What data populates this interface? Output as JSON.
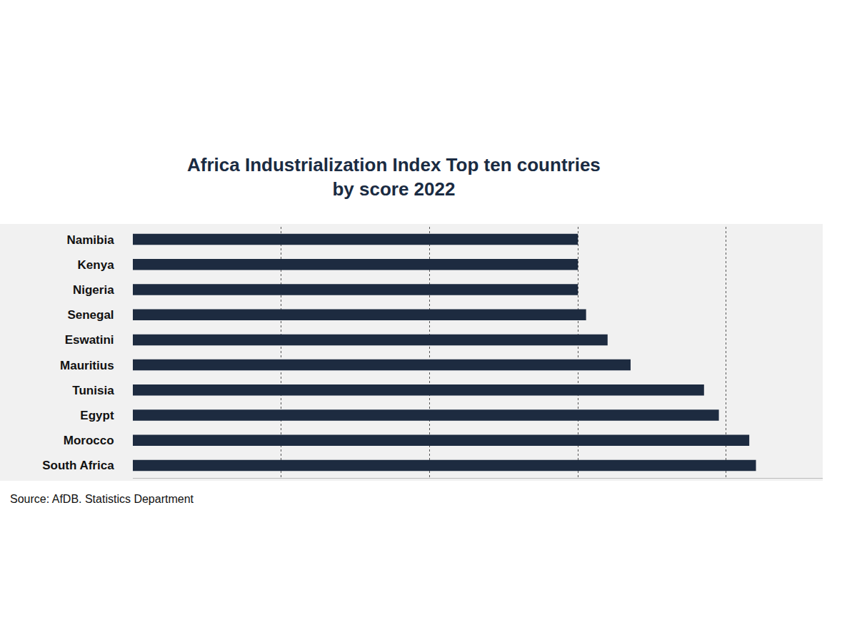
{
  "chart_data": {
    "type": "bar",
    "orientation": "horizontal",
    "title": "Africa Industrialization Index Top ten countries by score 2022",
    "source": "Source: AfDB. Statistics Department",
    "categories": [
      "Namibia",
      "Kenya",
      "Nigeria",
      "Senegal",
      "Eswatini",
      "Mauritius",
      "Tunisia",
      "Egypt",
      "Morocco",
      "South Africa"
    ],
    "values": [
      0.6,
      0.6,
      0.6,
      0.611,
      0.64,
      0.671,
      0.77,
      0.79,
      0.831,
      0.84
    ],
    "color": "#1d2b40",
    "xlim": [
      0,
      0.93
    ],
    "xticks": [
      0,
      0.2,
      0.4,
      0.6,
      0.8
    ],
    "grid": true,
    "tick_labels": "y",
    "data_labels": false
  }
}
